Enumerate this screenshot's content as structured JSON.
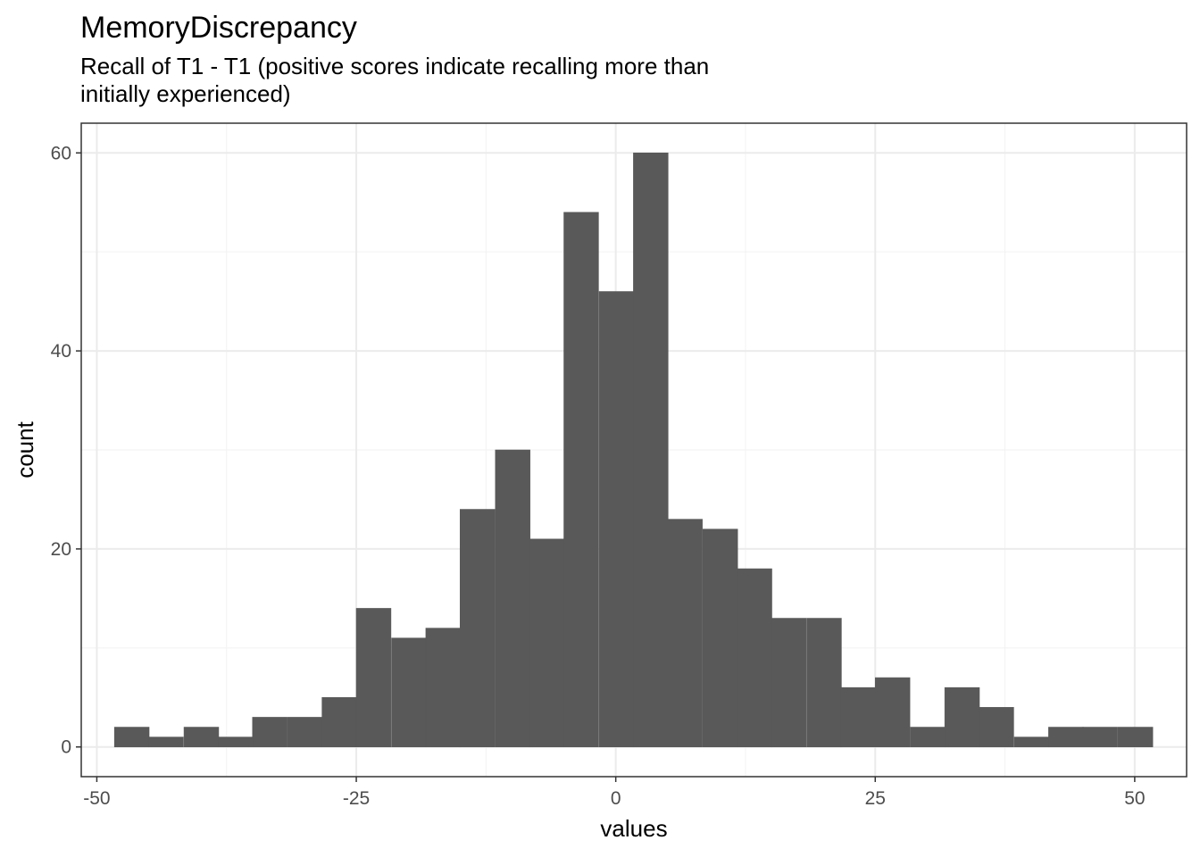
{
  "chart_data": {
    "type": "bar",
    "title": "MemoryDiscrepancy",
    "subtitle_lines": [
      "Recall of T1 - T1 (positive scores indicate recalling more than",
      "initially experienced)"
    ],
    "xlabel": "values",
    "ylabel": "count",
    "xlim": [
      -51.5,
      55.0
    ],
    "ylim": [
      -3,
      63
    ],
    "x_ticks": [
      -50,
      -25,
      0,
      25,
      50
    ],
    "x_tick_labels": [
      "-50",
      "-25",
      "0",
      "25",
      "50"
    ],
    "y_ticks": [
      0,
      20,
      40,
      60
    ],
    "y_tick_labels": [
      "0",
      "20",
      "40",
      "60"
    ],
    "grid": true,
    "bins": {
      "starts": [
        -48.3,
        -45.0,
        -41.6,
        -38.3,
        -35.0,
        -31.6,
        -28.3,
        -25.0,
        -21.6,
        -18.3,
        -15.0,
        -11.6,
        -8.3,
        -5.0,
        -1.6,
        1.7,
        5.0,
        8.4,
        11.7,
        15.0,
        18.4,
        21.7,
        25.0,
        28.4,
        31.7,
        35.0,
        38.4,
        41.7,
        45.0,
        48.4
      ],
      "width": 3.34,
      "counts": [
        2,
        1,
        2,
        1,
        3,
        3,
        5,
        14,
        11,
        12,
        24,
        30,
        21,
        54,
        46,
        60,
        23,
        22,
        18,
        13,
        13,
        6,
        7,
        2,
        6,
        4,
        1,
        2,
        2,
        2
      ]
    },
    "bar_color": "#595959"
  }
}
